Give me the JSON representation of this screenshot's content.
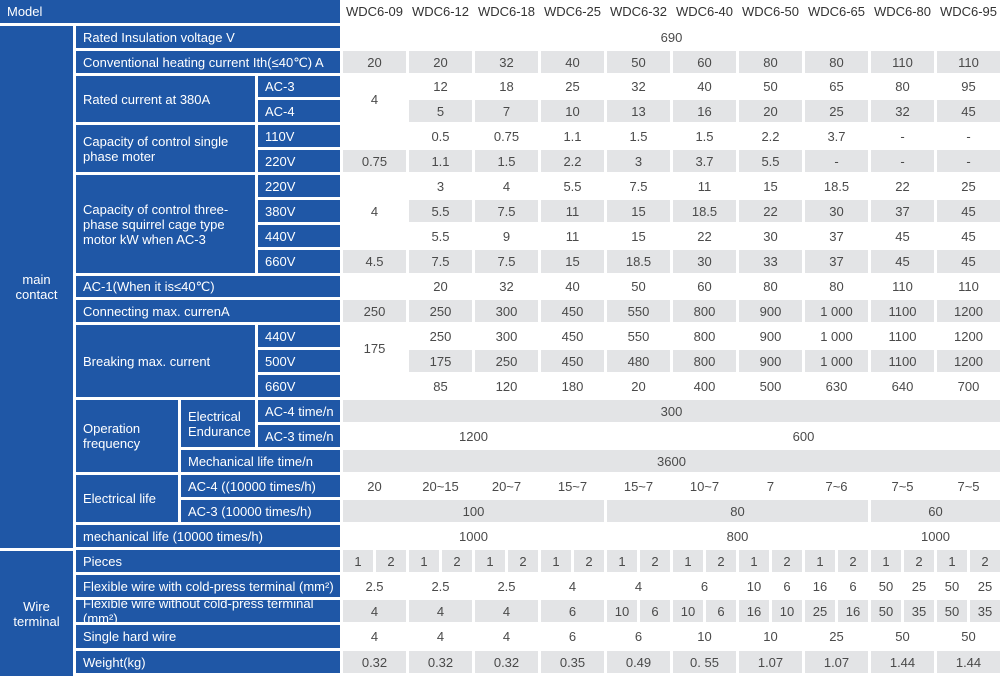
{
  "header": {
    "label": "Model",
    "models": [
      "WDC6-09",
      "WDC6-12",
      "WDC6-18",
      "WDC6-25",
      "WDC6-32",
      "WDC6-40",
      "WDC6-50",
      "WDC6-65",
      "WDC6-80",
      "WDC6-95"
    ]
  },
  "sections": {
    "main_contact": "main\ncontact",
    "wire_terminal": "Wire\nterminal"
  },
  "rows": [
    {
      "labels": [
        {
          "t": "Rated Insulation voltage V",
          "c": 0,
          "cs": 2
        }
      ],
      "vals": [
        {
          "t": "690",
          "c": 0,
          "cs": 10
        }
      ]
    },
    {
      "labels": [
        {
          "t": "Conventional heating current  Ith(≤40℃) A",
          "c": 0,
          "cs": 2
        }
      ],
      "vals": [
        {
          "t": "20",
          "c": 0
        },
        {
          "t": "20",
          "c": 1
        },
        {
          "t": "32",
          "c": 2
        },
        {
          "t": "40",
          "c": 3
        },
        {
          "t": "50",
          "c": 4
        },
        {
          "t": "60",
          "c": 5
        },
        {
          "t": "80",
          "c": 6
        },
        {
          "t": "80",
          "c": 7
        },
        {
          "t": "110",
          "c": 8
        },
        {
          "t": "110",
          "c": 9
        }
      ]
    },
    {
      "labels": [
        {
          "t": "Rated current at  380A",
          "c": 0,
          "rs": 2
        },
        {
          "t": "AC-3",
          "c": 1
        }
      ],
      "vals": [
        {
          "t": "4",
          "c": 0,
          "rs": 2
        },
        {
          "t": "12",
          "c": 1
        },
        {
          "t": "18",
          "c": 2
        },
        {
          "t": "25",
          "c": 3
        },
        {
          "t": "32",
          "c": 4
        },
        {
          "t": "40",
          "c": 5
        },
        {
          "t": "50",
          "c": 6
        },
        {
          "t": "65",
          "c": 7
        },
        {
          "t": "80",
          "c": 8
        },
        {
          "t": "95",
          "c": 9
        }
      ]
    },
    {
      "labels": [
        {
          "t": "AC-4",
          "c": 1
        }
      ],
      "vals": [
        {
          "t": "5",
          "c": 1
        },
        {
          "t": "7",
          "c": 2
        },
        {
          "t": "10",
          "c": 3
        },
        {
          "t": "13",
          "c": 4
        },
        {
          "t": "16",
          "c": 5
        },
        {
          "t": "20",
          "c": 6
        },
        {
          "t": "25",
          "c": 7
        },
        {
          "t": "32",
          "c": 8
        },
        {
          "t": "45",
          "c": 9
        }
      ]
    },
    {
      "labels": [
        {
          "t": "Capacity of control single phase moter",
          "c": 0,
          "rs": 2
        },
        {
          "t": "110V",
          "c": 1
        }
      ],
      "vals": [
        {
          "t": "0.5",
          "c": 1
        },
        {
          "t": "0.75",
          "c": 2
        },
        {
          "t": "1.1",
          "c": 3
        },
        {
          "t": "1.5",
          "c": 4
        },
        {
          "t": "1.5",
          "c": 5
        },
        {
          "t": "2.2",
          "c": 6
        },
        {
          "t": "3.7",
          "c": 7
        },
        {
          "t": "-",
          "c": 8
        },
        {
          "t": "-",
          "c": 9
        }
      ]
    },
    {
      "labels": [
        {
          "t": "220V",
          "c": 1
        }
      ],
      "vals": [
        {
          "t": "0.75",
          "c": 0
        },
        {
          "t": "1.1",
          "c": 1
        },
        {
          "t": "1.5",
          "c": 2
        },
        {
          "t": "2.2",
          "c": 3
        },
        {
          "t": "3",
          "c": 4
        },
        {
          "t": "3.7",
          "c": 5
        },
        {
          "t": "5.5",
          "c": 6
        },
        {
          "t": "-",
          "c": 7
        },
        {
          "t": "-",
          "c": 8
        },
        {
          "t": "-",
          "c": 9
        }
      ]
    },
    {
      "labels": [
        {
          "t": "Capacity of control three-phase squirrel cage type motor kW when AC-3",
          "c": 0,
          "rs": 4
        },
        {
          "t": "220V",
          "c": 1
        }
      ],
      "vals": [
        {
          "t": "4",
          "c": 0,
          "rs": 3
        },
        {
          "t": "3",
          "c": 1
        },
        {
          "t": "4",
          "c": 2
        },
        {
          "t": "5.5",
          "c": 3
        },
        {
          "t": "7.5",
          "c": 4
        },
        {
          "t": "11",
          "c": 5
        },
        {
          "t": "15",
          "c": 6
        },
        {
          "t": "18.5",
          "c": 7
        },
        {
          "t": "22",
          "c": 8
        },
        {
          "t": "25",
          "c": 9
        }
      ]
    },
    {
      "labels": [
        {
          "t": "380V",
          "c": 1
        }
      ],
      "vals": [
        {
          "t": "5.5",
          "c": 1
        },
        {
          "t": "7.5",
          "c": 2
        },
        {
          "t": "11",
          "c": 3
        },
        {
          "t": "15",
          "c": 4
        },
        {
          "t": "18.5",
          "c": 5
        },
        {
          "t": "22",
          "c": 6
        },
        {
          "t": "30",
          "c": 7
        },
        {
          "t": "37",
          "c": 8
        },
        {
          "t": "45",
          "c": 9
        }
      ]
    },
    {
      "labels": [
        {
          "t": "440V",
          "c": 1
        }
      ],
      "vals": [
        {
          "t": "5.5",
          "c": 1
        },
        {
          "t": "9",
          "c": 2
        },
        {
          "t": "11",
          "c": 3
        },
        {
          "t": "15",
          "c": 4
        },
        {
          "t": "22",
          "c": 5
        },
        {
          "t": "30",
          "c": 6
        },
        {
          "t": "37",
          "c": 7
        },
        {
          "t": "45",
          "c": 8
        },
        {
          "t": "45",
          "c": 9
        }
      ]
    },
    {
      "labels": [
        {
          "t": "660V",
          "c": 1
        }
      ],
      "vals": [
        {
          "t": "4.5",
          "c": 0
        },
        {
          "t": "7.5",
          "c": 1
        },
        {
          "t": "7.5",
          "c": 2
        },
        {
          "t": "15",
          "c": 3
        },
        {
          "t": "18.5",
          "c": 4
        },
        {
          "t": "30",
          "c": 5
        },
        {
          "t": "33",
          "c": 6
        },
        {
          "t": "37",
          "c": 7
        },
        {
          "t": "45",
          "c": 8
        },
        {
          "t": "45",
          "c": 9
        }
      ]
    },
    {
      "labels": [
        {
          "t": "AC-1(When it is≤40℃)",
          "c": 0,
          "cs": 2
        }
      ],
      "vals": [
        {
          "t": "20",
          "c": 1
        },
        {
          "t": "32",
          "c": 2
        },
        {
          "t": "40",
          "c": 3
        },
        {
          "t": "50",
          "c": 4
        },
        {
          "t": "60",
          "c": 5
        },
        {
          "t": "80",
          "c": 6
        },
        {
          "t": "80",
          "c": 7
        },
        {
          "t": "110",
          "c": 8
        },
        {
          "t": "110",
          "c": 9
        }
      ]
    },
    {
      "labels": [
        {
          "t": "Connecting max. currenA",
          "c": 0,
          "cs": 2
        }
      ],
      "vals": [
        {
          "t": "250",
          "c": 0
        },
        {
          "t": "250",
          "c": 1
        },
        {
          "t": "300",
          "c": 2
        },
        {
          "t": "450",
          "c": 3
        },
        {
          "t": "550",
          "c": 4
        },
        {
          "t": "800",
          "c": 5
        },
        {
          "t": "900",
          "c": 6
        },
        {
          "t": "1 000",
          "c": 7
        },
        {
          "t": "1100",
          "c": 8
        },
        {
          "t": "1200",
          "c": 9
        }
      ]
    },
    {
      "labels": [
        {
          "t": "Breaking max. current",
          "c": 0,
          "rs": 3
        },
        {
          "t": "440V",
          "c": 1
        }
      ],
      "vals": [
        {
          "t": "175",
          "c": 0,
          "rs": 2
        },
        {
          "t": "250",
          "c": 1
        },
        {
          "t": "300",
          "c": 2
        },
        {
          "t": "450",
          "c": 3
        },
        {
          "t": "550",
          "c": 4
        },
        {
          "t": "800",
          "c": 5
        },
        {
          "t": "900",
          "c": 6
        },
        {
          "t": "1 000",
          "c": 7
        },
        {
          "t": "1100",
          "c": 8
        },
        {
          "t": "1200",
          "c": 9
        }
      ]
    },
    {
      "labels": [
        {
          "t": "500V",
          "c": 1
        }
      ],
      "vals": [
        {
          "t": "175",
          "c": 1
        },
        {
          "t": "250",
          "c": 2
        },
        {
          "t": "450",
          "c": 3
        },
        {
          "t": "480",
          "c": 4
        },
        {
          "t": "800",
          "c": 5
        },
        {
          "t": "900",
          "c": 6
        },
        {
          "t": "1 000",
          "c": 7
        },
        {
          "t": "1100",
          "c": 8
        },
        {
          "t": "1200",
          "c": 9
        }
      ]
    },
    {
      "labels": [
        {
          "t": "660V",
          "c": 1
        }
      ],
      "vals": [
        {
          "t": "85",
          "c": 1
        },
        {
          "t": "120",
          "c": 2
        },
        {
          "t": "180",
          "c": 3
        },
        {
          "t": "20",
          "c": 4
        },
        {
          "t": "400",
          "c": 5
        },
        {
          "t": "500",
          "c": 6
        },
        {
          "t": "630",
          "c": 7
        },
        {
          "t": "640",
          "c": 8
        },
        {
          "t": "700",
          "c": 9
        }
      ]
    },
    {
      "labels": [
        {
          "t": "Operation frequency",
          "c": 0,
          "rs": 3,
          "sp": "opfreq"
        },
        {
          "t": "Electrical Endurance",
          "c": 2,
          "rs": 2,
          "sp": "elend"
        },
        {
          "t": "AC-4 time/n",
          "c": 3
        }
      ],
      "vals": [
        {
          "t": "300",
          "c": 0,
          "cs": 10
        }
      ]
    },
    {
      "labels": [
        {
          "t": "AC-3 time/n",
          "c": 3
        }
      ],
      "vals": [
        {
          "t": "1200",
          "c": 0,
          "cs": 4
        },
        {
          "t": "600",
          "c": 4,
          "cs": 6
        }
      ]
    },
    {
      "labels": [
        {
          "t": "Mechanical life time/n",
          "c": 2,
          "sp": "mech"
        }
      ],
      "vals": [
        {
          "t": "3600",
          "c": 0,
          "cs": 10
        }
      ]
    },
    {
      "labels": [
        {
          "t": "Electrical life",
          "c": 0,
          "rs": 2,
          "sp": "elife"
        },
        {
          "t": "AC-4 ((10000 times/h)",
          "c": 2,
          "sp": "sub"
        }
      ],
      "vals": [
        {
          "t": "20",
          "c": 0
        },
        {
          "t": "20~15",
          "c": 1
        },
        {
          "t": "20~7",
          "c": 2
        },
        {
          "t": "15~7",
          "c": 3
        },
        {
          "t": "15~7",
          "c": 4
        },
        {
          "t": "10~7",
          "c": 5
        },
        {
          "t": "7",
          "c": 6
        },
        {
          "t": "7~6",
          "c": 7
        },
        {
          "t": "7~5",
          "c": 8
        },
        {
          "t": "7~5",
          "c": 9
        }
      ]
    },
    {
      "labels": [
        {
          "t": "AC-3 (10000 times/h)",
          "c": 2,
          "sp": "sub"
        }
      ],
      "vals": [
        {
          "t": "100",
          "c": 0,
          "cs": 4
        },
        {
          "t": "80",
          "c": 4,
          "cs": 4
        },
        {
          "t": "60",
          "c": 8,
          "cs": 2
        }
      ]
    },
    {
      "labels": [
        {
          "t": "mechanical life (10000 times/h)",
          "c": 0,
          "cs": 2
        }
      ],
      "vals": [
        {
          "t": "1000",
          "c": 0,
          "cs": 4
        },
        {
          "t": "800",
          "c": 4,
          "cs": 4
        },
        {
          "t": "1000",
          "c": 8,
          "cs": 2
        }
      ]
    },
    {
      "labels": [
        {
          "t": "Pieces",
          "c": 0,
          "cs": 2
        }
      ],
      "halves": true,
      "vals": [
        {
          "t": "1",
          "h": 0
        },
        {
          "t": "2",
          "h": 1
        },
        {
          "t": "1",
          "h": 2
        },
        {
          "t": "2",
          "h": 3
        },
        {
          "t": "1",
          "h": 4
        },
        {
          "t": "2",
          "h": 5
        },
        {
          "t": "1",
          "h": 6
        },
        {
          "t": "2",
          "h": 7
        },
        {
          "t": "1",
          "h": 8
        },
        {
          "t": "2",
          "h": 9
        },
        {
          "t": "1",
          "h": 10
        },
        {
          "t": "2",
          "h": 11
        },
        {
          "t": "1",
          "h": 12
        },
        {
          "t": "2",
          "h": 13
        },
        {
          "t": "1",
          "h": 14
        },
        {
          "t": "2",
          "h": 15
        },
        {
          "t": "1",
          "h": 16
        },
        {
          "t": "2",
          "h": 17
        },
        {
          "t": "1",
          "h": 18
        },
        {
          "t": "2",
          "h": 19
        }
      ]
    },
    {
      "labels": [
        {
          "t": "Flexible wire with cold-press terminal (mm²)",
          "c": 0,
          "cs": 2
        }
      ],
      "halves": true,
      "vals": [
        {
          "t": "2.5",
          "h": 0,
          "hs": 2
        },
        {
          "t": "2.5",
          "h": 2,
          "hs": 2
        },
        {
          "t": "2.5",
          "h": 4,
          "hs": 2
        },
        {
          "t": "4",
          "h": 6,
          "hs": 2
        },
        {
          "t": "4",
          "h": 8,
          "hs": 2
        },
        {
          "t": "6",
          "h": 10,
          "hs": 2
        },
        {
          "t": "10",
          "h": 12
        },
        {
          "t": "6",
          "h": 13
        },
        {
          "t": "16",
          "h": 14
        },
        {
          "t": "6",
          "h": 15
        },
        {
          "t": "50",
          "h": 16
        },
        {
          "t": "25",
          "h": 17
        },
        {
          "t": "50",
          "h": 18
        },
        {
          "t": "25",
          "h": 19
        }
      ]
    },
    {
      "labels": [
        {
          "t": "Flexible wire without cold-press terminal (mm²)",
          "c": 0,
          "cs": 2
        }
      ],
      "halves": true,
      "vals": [
        {
          "t": "4",
          "h": 0,
          "hs": 2
        },
        {
          "t": "4",
          "h": 2,
          "hs": 2
        },
        {
          "t": "4",
          "h": 4,
          "hs": 2
        },
        {
          "t": "6",
          "h": 6,
          "hs": 2
        },
        {
          "t": "10",
          "h": 8
        },
        {
          "t": "6",
          "h": 9
        },
        {
          "t": "10",
          "h": 10
        },
        {
          "t": "6",
          "h": 11
        },
        {
          "t": "16",
          "h": 12
        },
        {
          "t": "10",
          "h": 13
        },
        {
          "t": "25",
          "h": 14
        },
        {
          "t": "16",
          "h": 15
        },
        {
          "t": "50",
          "h": 16
        },
        {
          "t": "35",
          "h": 17
        },
        {
          "t": "50",
          "h": 18
        },
        {
          "t": "35",
          "h": 19
        }
      ]
    },
    {
      "labels": [
        {
          "t": "Single hard wire",
          "c": 0,
          "cs": 2
        }
      ],
      "halves": true,
      "vals": [
        {
          "t": "4",
          "h": 0,
          "hs": 2
        },
        {
          "t": "4",
          "h": 2,
          "hs": 2
        },
        {
          "t": "4",
          "h": 4,
          "hs": 2
        },
        {
          "t": "6",
          "h": 6,
          "hs": 2
        },
        {
          "t": "6",
          "h": 8,
          "hs": 2
        },
        {
          "t": "10",
          "h": 10,
          "hs": 2
        },
        {
          "t": "10",
          "h": 12,
          "hs": 2
        },
        {
          "t": "25",
          "h": 14,
          "hs": 2
        },
        {
          "t": "50",
          "h": 16,
          "hs": 2
        },
        {
          "t": "50",
          "h": 18,
          "hs": 2
        }
      ]
    },
    {
      "labels": [
        {
          "t": "Weight(kg)",
          "c": 0,
          "cs": 2
        }
      ],
      "vals": [
        {
          "t": "0.32",
          "c": 0
        },
        {
          "t": "0.32",
          "c": 1
        },
        {
          "t": "0.32",
          "c": 2
        },
        {
          "t": "0.35",
          "c": 3
        },
        {
          "t": "0.49",
          "c": 4
        },
        {
          "t": "0. 55",
          "c": 5
        },
        {
          "t": "1.07",
          "c": 6
        },
        {
          "t": "1.07",
          "c": 7
        },
        {
          "t": "1.44",
          "c": 8
        },
        {
          "t": "1.44",
          "c": 9
        }
      ]
    }
  ]
}
